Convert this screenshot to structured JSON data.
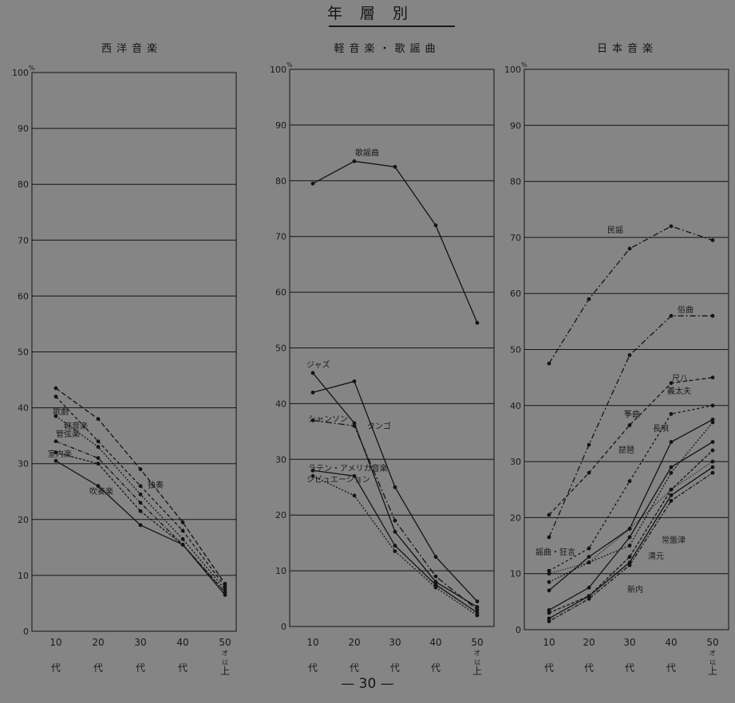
{
  "page": {
    "title": "年層別",
    "number": "— 30 —"
  },
  "colors": {
    "background": "#858585",
    "ink": "#141414"
  },
  "chart_data": [
    {
      "type": "line",
      "title": "西洋音楽",
      "ylim": [
        0,
        100
      ],
      "yunit": "%",
      "yticks": [
        "0",
        "10",
        "20",
        "30",
        "40",
        "50",
        "60",
        "70",
        "80",
        "90",
        "100"
      ],
      "categories": [
        "10",
        "20",
        "30",
        "40",
        "50"
      ],
      "cat_suffix": [
        "代",
        "代",
        "代",
        "代",
        "才以上"
      ],
      "grid": true,
      "series": [
        {
          "name": "歌劇",
          "values": [
            43.5,
            38,
            29,
            19.5,
            8.5
          ],
          "dash": "6,3"
        },
        {
          "name": "管弦楽",
          "values": [
            42,
            34,
            26,
            18,
            8
          ],
          "dash": "4,3"
        },
        {
          "name": "軽音楽",
          "values": [
            38.5,
            33,
            24.5,
            16.5,
            7.5
          ],
          "dash": "2,2"
        },
        {
          "name": "独奏",
          "values": [
            34,
            31,
            23,
            15.5,
            7
          ],
          "dash": "5,2,1,2"
        },
        {
          "name": "室内楽",
          "values": [
            32,
            30,
            21.5,
            15.5,
            7
          ],
          "dash": "3,2"
        },
        {
          "name": "吹奏楽",
          "values": [
            30.5,
            26,
            19,
            15.5,
            6.5
          ],
          "dash": ""
        }
      ],
      "annotations": [
        "歌劇",
        "管弦楽",
        "軽音楽",
        "独奏",
        "室内楽",
        "吹奏楽"
      ]
    },
    {
      "type": "line",
      "title": "軽音楽・歌謡曲",
      "ylim": [
        0,
        100
      ],
      "yunit": "%",
      "yticks": [
        "0",
        "10",
        "20",
        "30",
        "40",
        "50",
        "60",
        "70",
        "80",
        "90",
        "100"
      ],
      "categories": [
        "10",
        "20",
        "30",
        "40",
        "50"
      ],
      "cat_suffix": [
        "代",
        "代",
        "代",
        "代",
        "才以上"
      ],
      "grid": true,
      "series": [
        {
          "name": "歌謡曲",
          "values": [
            79.5,
            83.5,
            82.5,
            72,
            54.5
          ],
          "dash": ""
        },
        {
          "name": "ジャズ",
          "values": [
            45.5,
            36.5,
            17,
            8,
            3.5
          ],
          "dash": ""
        },
        {
          "name": "タンゴ",
          "values": [
            42,
            44,
            25,
            12.5,
            4.5
          ],
          "dash": ""
        },
        {
          "name": "シャンソン",
          "values": [
            37,
            36,
            19,
            9,
            3
          ],
          "dash": "8,3,2,3"
        },
        {
          "name": "ラテン・アメリカ音楽",
          "values": [
            28,
            27,
            14.5,
            7.5,
            2.5
          ],
          "dash": ""
        },
        {
          "name": "シビュエーション",
          "values": [
            27,
            23.5,
            13.5,
            7,
            2
          ],
          "dash": "2,2"
        }
      ],
      "annotations": [
        "歌謡曲",
        "ジャズ",
        "タンゴ",
        "シャンソン",
        "ラテン・アメリカ音楽",
        "シビュエーション"
      ]
    },
    {
      "type": "line",
      "title": "日本音楽",
      "ylim": [
        0,
        100
      ],
      "yunit": "%",
      "yticks": [
        "0",
        "10",
        "20",
        "30",
        "40",
        "50",
        "60",
        "70",
        "80",
        "90",
        "100"
      ],
      "categories": [
        "10",
        "20",
        "30",
        "40",
        "50"
      ],
      "cat_suffix": [
        "代",
        "代",
        "代",
        "代",
        "才以上"
      ],
      "grid": true,
      "series": [
        {
          "name": "民謡",
          "values": [
            47.5,
            59,
            68,
            72,
            69.5
          ],
          "dash": "7,3,2,3"
        },
        {
          "name": "俗曲",
          "values": [
            16.5,
            33,
            49,
            56,
            56
          ],
          "dash": "7,3,2,3"
        },
        {
          "name": "尺八",
          "values": [
            20.5,
            28,
            36.5,
            44,
            45
          ],
          "dash": "5,3"
        },
        {
          "name": "義太夫",
          "values": [
            10.5,
            14.5,
            26.5,
            38.5,
            40
          ],
          "dash": "3,3"
        },
        {
          "name": "長唄",
          "values": [
            7,
            13,
            18,
            33.5,
            37.5
          ],
          "dash": ""
        },
        {
          "name": "筝曲",
          "values": [
            8.5,
            12,
            15,
            28,
            37
          ],
          "dash": "2,2"
        },
        {
          "name": "琵琶",
          "values": [
            3.5,
            7.5,
            16.5,
            29,
            33.5
          ],
          "dash": ""
        },
        {
          "name": "謡曲・狂言",
          "values": [
            10,
            12,
            18,
            25,
            30
          ],
          "dash": "1,2"
        },
        {
          "name": "常盤津",
          "values": [
            3,
            6,
            13,
            25,
            32
          ],
          "dash": "4,2"
        },
        {
          "name": "清元",
          "values": [
            2,
            6,
            12,
            24,
            29
          ],
          "dash": ""
        },
        {
          "name": "新内",
          "values": [
            1.5,
            5.5,
            11.5,
            23,
            28
          ],
          "dash": "2,2,5,2"
        }
      ],
      "annotations": [
        "民謡",
        "俗曲",
        "尺八",
        "義太夫",
        "長唄",
        "筝曲",
        "琵琶",
        "謡曲・狂言",
        "常盤津",
        "清元",
        "新内"
      ]
    }
  ]
}
